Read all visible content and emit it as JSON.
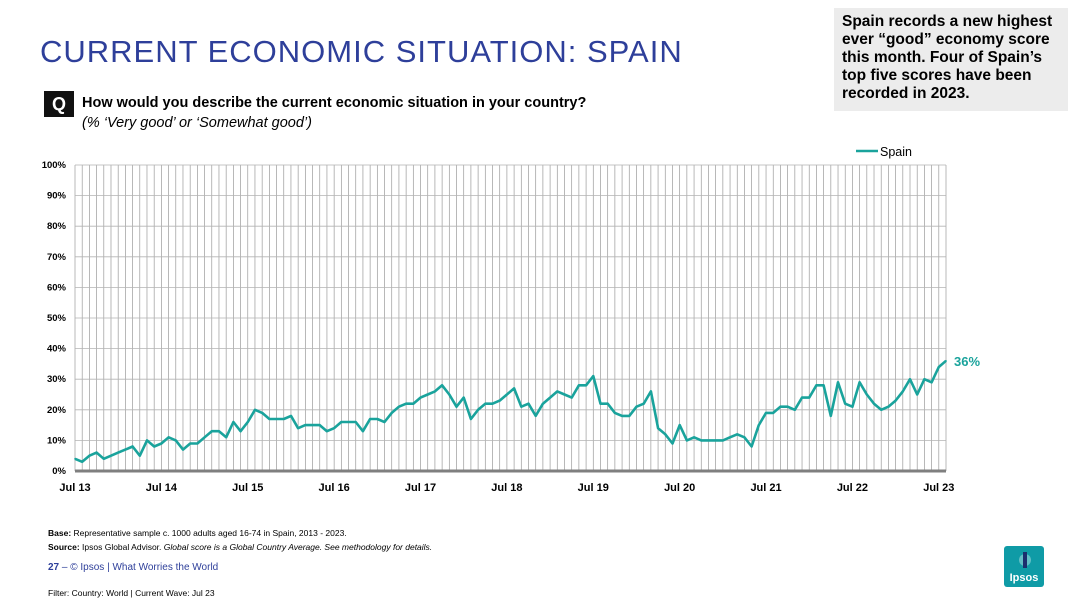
{
  "page": {
    "title": "CURRENT ECONOMIC SITUATION: SPAIN",
    "callout": "Spain records a new highest ever “good” economy score this month. Four of Spain’s top five scores have been recorded in 2023.",
    "question_badge": "Q",
    "question": "How would you describe the current economic situation in your country?",
    "question_sub": "(% ‘Very good’ or ‘Somewhat good’)",
    "base_label": "Base:",
    "base_text": "Representative sample c. 1000 adults aged 16-74 in Spain, 2013 - 2023.",
    "source_label": "Source:",
    "source_text": "Ipsos Global Advisor.",
    "source_note": "Global score is a Global Country Average. See methodology for details.",
    "page_number": "27",
    "page_sep": " – ",
    "footer_text": "© Ipsos | What Worries the World",
    "filter_text": "Filter: Country: World | Current Wave: Jul 23",
    "logo_text": "Ipsos",
    "brand_color": "#2e3f9a",
    "series_color": "#1aa39c"
  },
  "chart_data": {
    "type": "line",
    "series": [
      {
        "name": "Spain",
        "values": [
          4,
          3,
          5,
          6,
          4,
          5,
          6,
          7,
          8,
          5,
          10,
          8,
          9,
          11,
          10,
          7,
          9,
          9,
          11,
          13,
          13,
          11,
          16,
          13,
          16,
          20,
          19,
          17,
          17,
          17,
          18,
          14,
          15,
          15,
          15,
          13,
          14,
          16,
          16,
          16,
          13,
          17,
          17,
          16,
          19,
          21,
          22,
          22,
          24,
          25,
          26,
          28,
          25,
          21,
          24,
          17,
          20,
          22,
          22,
          23,
          25,
          27,
          21,
          22,
          18,
          22,
          24,
          26,
          25,
          24,
          28,
          28,
          31,
          22,
          22,
          19,
          18,
          18,
          21,
          22,
          26,
          14,
          12,
          9,
          15,
          10,
          11,
          10,
          10,
          10,
          10,
          11,
          12,
          11,
          8,
          15,
          19,
          19,
          21,
          21,
          20,
          24,
          24,
          28,
          28,
          18,
          29,
          22,
          21,
          29,
          25,
          22,
          20,
          21,
          23,
          26,
          30,
          25,
          30,
          29,
          34,
          36
        ]
      }
    ],
    "x_tick_labels": [
      "Jul 13",
      "Jul 14",
      "Jul 15",
      "Jul 16",
      "Jul 17",
      "Jul 18",
      "Jul 19",
      "Jul 20",
      "Jul 21",
      "Jul 22",
      "Jul 23"
    ],
    "y_tick_labels": [
      "0%",
      "10%",
      "20%",
      "30%",
      "40%",
      "50%",
      "60%",
      "70%",
      "80%",
      "90%",
      "100%"
    ],
    "ylim": [
      0,
      100
    ],
    "data_label": "36%",
    "legend": "top-right"
  }
}
